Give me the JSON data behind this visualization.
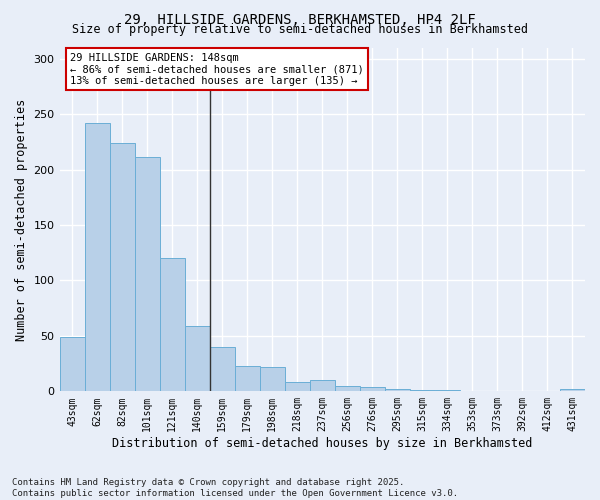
{
  "title1": "29, HILLSIDE GARDENS, BERKHAMSTED, HP4 2LF",
  "title2": "Size of property relative to semi-detached houses in Berkhamsted",
  "xlabel": "Distribution of semi-detached houses by size in Berkhamsted",
  "ylabel": "Number of semi-detached properties",
  "categories": [
    "43sqm",
    "62sqm",
    "82sqm",
    "101sqm",
    "121sqm",
    "140sqm",
    "159sqm",
    "179sqm",
    "198sqm",
    "218sqm",
    "237sqm",
    "256sqm",
    "276sqm",
    "295sqm",
    "315sqm",
    "334sqm",
    "353sqm",
    "373sqm",
    "392sqm",
    "412sqm",
    "431sqm"
  ],
  "values": [
    49,
    242,
    224,
    211,
    120,
    59,
    40,
    23,
    22,
    8,
    10,
    5,
    4,
    2,
    1,
    1,
    0,
    0,
    0,
    0,
    2
  ],
  "bar_color": "#b8d0e8",
  "bar_edge_color": "#6aaed6",
  "highlight_bar_index": 5,
  "annotation_title": "29 HILLSIDE GARDENS: 148sqm",
  "annotation_line1": "← 86% of semi-detached houses are smaller (871)",
  "annotation_line2": "13% of semi-detached houses are larger (135) →",
  "annotation_box_color": "#ffffff",
  "annotation_box_edge": "#cc0000",
  "vline_color": "#333333",
  "bg_color": "#e8eef8",
  "plot_bg_color": "#e8eef8",
  "grid_color": "#ffffff",
  "ylim": [
    0,
    310
  ],
  "yticks": [
    0,
    50,
    100,
    150,
    200,
    250,
    300
  ],
  "footer": "Contains HM Land Registry data © Crown copyright and database right 2025.\nContains public sector information licensed under the Open Government Licence v3.0."
}
